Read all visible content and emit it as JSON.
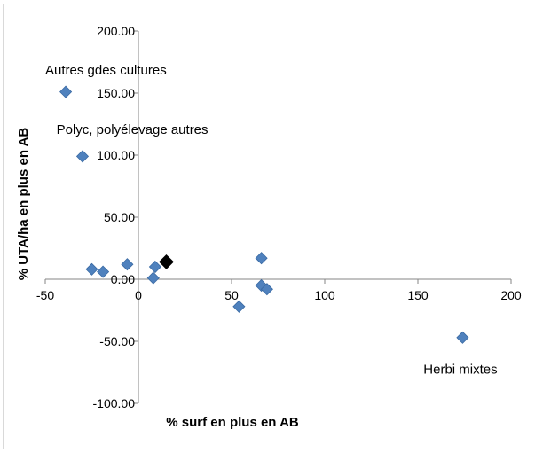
{
  "chart_data": {
    "type": "scatter",
    "xlabel": "% surf en plus en AB",
    "ylabel": "% UTA/ha en plus en AB",
    "xlim": [
      -50,
      200
    ],
    "ylim": [
      -100,
      200
    ],
    "x_ticks": [
      "-50",
      "0",
      "50",
      "100",
      "150",
      "200"
    ],
    "y_ticks": [
      "200.00",
      "150.00",
      "100.00",
      "50.00",
      "0.00",
      "-50.00",
      "-100.00"
    ],
    "marker_color": "#4f81bd",
    "highlight_color": "#000000",
    "grid": false,
    "legend": "none",
    "points": [
      {
        "x": -39,
        "y": 151,
        "highlight": false
      },
      {
        "x": -30,
        "y": 99,
        "highlight": false
      },
      {
        "x": -25,
        "y": 8,
        "highlight": false
      },
      {
        "x": -19,
        "y": 6,
        "highlight": false
      },
      {
        "x": -6,
        "y": 12,
        "highlight": false
      },
      {
        "x": 8,
        "y": 1,
        "highlight": false
      },
      {
        "x": 9,
        "y": 10,
        "highlight": false
      },
      {
        "x": 15,
        "y": 14,
        "highlight": true
      },
      {
        "x": 54,
        "y": -22,
        "highlight": false
      },
      {
        "x": 66,
        "y": 17,
        "highlight": false
      },
      {
        "x": 66,
        "y": -5,
        "highlight": false
      },
      {
        "x": 69,
        "y": -8,
        "highlight": false
      },
      {
        "x": 174,
        "y": -47,
        "highlight": false
      }
    ],
    "annotations": [
      {
        "text": "Autres gdes cultures",
        "x": -50,
        "y": 165
      },
      {
        "text": "Polyc, polyélevage autres",
        "x": -44,
        "y": 117
      },
      {
        "text": "Herbi mixtes",
        "x": 153,
        "y": -76
      }
    ]
  }
}
